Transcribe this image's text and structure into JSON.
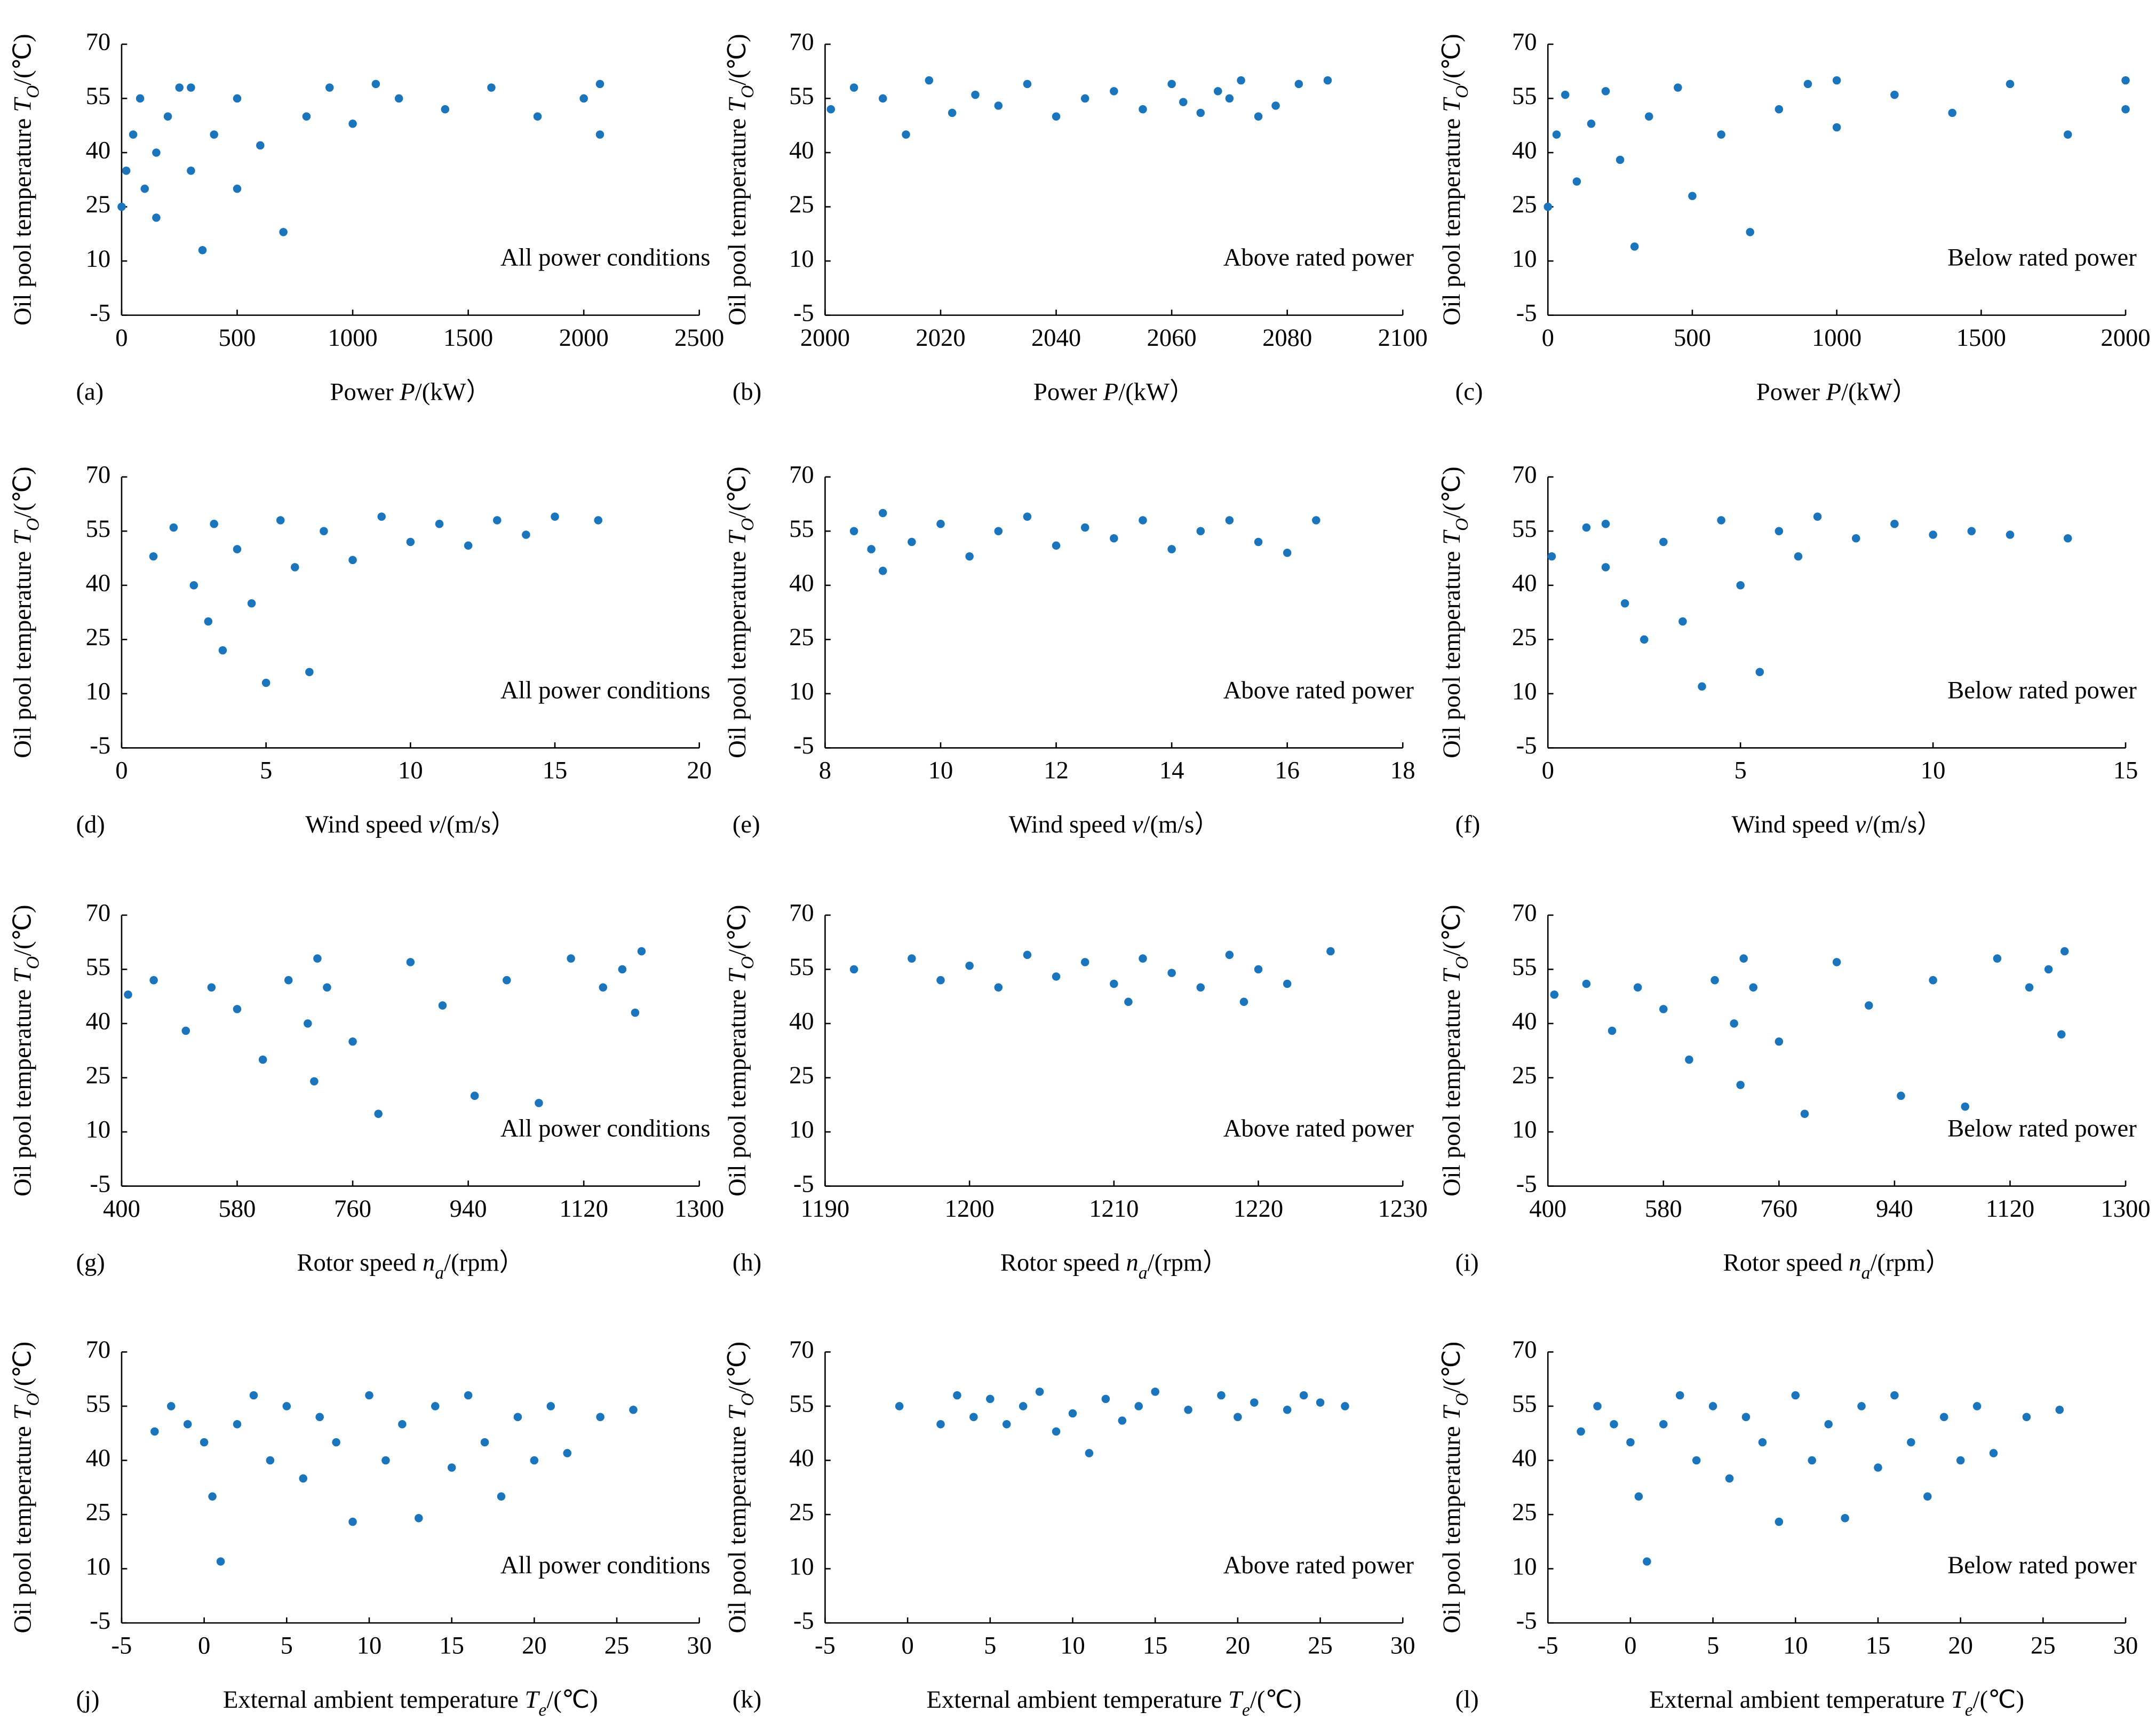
{
  "chart_data": [
    {
      "type": "scatter",
      "label": "(a)",
      "annotation": "All power conditions",
      "color": "#1b75bc",
      "xlim": [
        0,
        2500
      ],
      "xticks": [
        0,
        500,
        1000,
        1500,
        2000,
        2500
      ],
      "ylim": [
        -5,
        70
      ],
      "yticks": [
        -5,
        10,
        25,
        40,
        55,
        70
      ],
      "xlabel": {
        "text": "Power ",
        "symbol": "P",
        "unit": "/(kW）"
      },
      "ylabel": {
        "text": "Oil pool temperature ",
        "symbol": "T",
        "sub": "O",
        "unit": "/(℃)"
      },
      "x": [
        0,
        20,
        50,
        80,
        100,
        150,
        200,
        250,
        300,
        350,
        400,
        500,
        600,
        700,
        800,
        900,
        1000,
        1200,
        1400,
        1600,
        1800,
        2000,
        2070,
        2070,
        1100,
        300,
        150,
        500
      ],
      "y": [
        25,
        35,
        45,
        55,
        30,
        40,
        50,
        58,
        35,
        13,
        45,
        55,
        42,
        18,
        50,
        58,
        48,
        55,
        52,
        58,
        50,
        55,
        45,
        59,
        59,
        58,
        22,
        30
      ]
    },
    {
      "type": "scatter",
      "label": "(b)",
      "annotation": "Above rated power",
      "color": "#1b75bc",
      "xlim": [
        2000,
        2100
      ],
      "xticks": [
        2000,
        2020,
        2040,
        2060,
        2080,
        2100
      ],
      "ylim": [
        -5,
        70
      ],
      "yticks": [
        -5,
        10,
        25,
        40,
        55,
        70
      ],
      "xlabel": {
        "text": "Power  ",
        "symbol": "P",
        "unit": "/(kW）"
      },
      "ylabel": {
        "text": "Oil pool temperature ",
        "symbol": "T",
        "sub": "O",
        "unit": "/(℃)"
      },
      "x": [
        2001,
        2005,
        2010,
        2014,
        2018,
        2022,
        2026,
        2030,
        2035,
        2040,
        2045,
        2050,
        2055,
        2060,
        2062,
        2065,
        2068,
        2070,
        2072,
        2075,
        2078,
        2082,
        2087
      ],
      "y": [
        52,
        58,
        55,
        45,
        60,
        51,
        56,
        53,
        59,
        50,
        55,
        57,
        52,
        59,
        54,
        51,
        57,
        55,
        60,
        50,
        53,
        59,
        60
      ]
    },
    {
      "type": "scatter",
      "label": "(c)",
      "annotation": "Below rated power",
      "color": "#1b75bc",
      "xlim": [
        0,
        2000
      ],
      "xticks": [
        0,
        500,
        1000,
        1500,
        2000
      ],
      "ylim": [
        -5,
        70
      ],
      "yticks": [
        -5,
        10,
        25,
        40,
        55,
        70
      ],
      "xlabel": {
        "text": "Power  ",
        "symbol": "P",
        "unit": "/(kW）"
      },
      "ylabel": {
        "text": "Oil pool temperature ",
        "symbol": "T",
        "sub": "O",
        "unit": "/(℃)"
      },
      "x": [
        0,
        30,
        60,
        100,
        150,
        200,
        250,
        300,
        350,
        450,
        500,
        600,
        700,
        800,
        900,
        1000,
        1200,
        1400,
        1600,
        1800,
        2000,
        2000,
        1000
      ],
      "y": [
        25,
        45,
        56,
        32,
        48,
        57,
        38,
        14,
        50,
        58,
        28,
        45,
        18,
        52,
        59,
        47,
        56,
        51,
        59,
        45,
        52,
        60,
        60
      ]
    },
    {
      "type": "scatter",
      "label": "(d)",
      "annotation": "All power conditions",
      "color": "#1b75bc",
      "xlim": [
        0,
        20
      ],
      "xticks": [
        0,
        5,
        10,
        15,
        20
      ],
      "ylim": [
        -5,
        70
      ],
      "yticks": [
        -5,
        10,
        25,
        40,
        55,
        70
      ],
      "xlabel": {
        "text": "Wind speed ",
        "symbol": "v",
        "unit": "/(m/s）"
      },
      "ylabel": {
        "text": "Oil pool temperature ",
        "symbol": "T",
        "sub": "O",
        "unit": "/(℃)"
      },
      "x": [
        1.1,
        1.8,
        2.5,
        3,
        3.5,
        4,
        4.5,
        5,
        5.5,
        6,
        6.5,
        7,
        8,
        9,
        10,
        11,
        12,
        13,
        14,
        15,
        16.5,
        3.2
      ],
      "y": [
        48,
        56,
        40,
        30,
        22,
        50,
        35,
        13,
        58,
        45,
        16,
        55,
        47,
        59,
        52,
        57,
        51,
        58,
        54,
        59,
        58,
        57
      ]
    },
    {
      "type": "scatter",
      "label": "(e)",
      "annotation": "Above rated power",
      "color": "#1b75bc",
      "xlim": [
        8,
        18
      ],
      "xticks": [
        8,
        10,
        12,
        14,
        16,
        18
      ],
      "ylim": [
        -5,
        70
      ],
      "yticks": [
        -5,
        10,
        25,
        40,
        55,
        70
      ],
      "xlabel": {
        "text": "Wind speed ",
        "symbol": "v",
        "unit": "/(m/s）"
      },
      "ylabel": {
        "text": "Oil pool temperature  ",
        "symbol": "T",
        "sub": "O",
        "unit": "/(℃)"
      },
      "x": [
        8.5,
        8.8,
        9,
        9,
        9.5,
        10,
        10.5,
        11,
        11.5,
        12,
        12.5,
        13,
        13.5,
        14,
        14.5,
        15,
        15.5,
        16,
        16.5
      ],
      "y": [
        55,
        50,
        44,
        60,
        52,
        57,
        48,
        55,
        59,
        51,
        56,
        53,
        58,
        50,
        55,
        58,
        52,
        49,
        58
      ]
    },
    {
      "type": "scatter",
      "label": "(f)",
      "annotation": "Below rated power",
      "color": "#1b75bc",
      "xlim": [
        0,
        15
      ],
      "xticks": [
        0,
        5,
        10,
        15
      ],
      "ylim": [
        -5,
        70
      ],
      "yticks": [
        -5,
        10,
        25,
        40,
        55,
        70
      ],
      "xlabel": {
        "text": "Wind speed ",
        "symbol": "v",
        "unit": "/(m/s）"
      },
      "ylabel": {
        "text": "Oil pool temperature  ",
        "symbol": "T",
        "sub": "O",
        "unit": "/(℃)"
      },
      "x": [
        0.1,
        1,
        1.5,
        2,
        2.5,
        3,
        3.5,
        4,
        4.5,
        5,
        5.5,
        6,
        6.5,
        7,
        8,
        9,
        10,
        11,
        12,
        13.5,
        1.5
      ],
      "y": [
        48,
        56,
        45,
        35,
        25,
        52,
        30,
        12,
        58,
        40,
        16,
        55,
        48,
        59,
        53,
        57,
        54,
        55,
        54,
        53,
        57
      ]
    },
    {
      "type": "scatter",
      "label": "(g)",
      "annotation": "All power conditions",
      "color": "#1b75bc",
      "xlim": [
        400,
        1300
      ],
      "xticks": [
        400,
        580,
        760,
        940,
        1120,
        1300
      ],
      "ylim": [
        -5,
        70
      ],
      "yticks": [
        -5,
        10,
        25,
        40,
        55,
        70
      ],
      "xlabel": {
        "text": "Rotor speed  ",
        "symbol": "n",
        "sub": "a",
        "unit": "/(rpm）"
      },
      "ylabel": {
        "text": "Oil pool temperature  ",
        "symbol": "T",
        "sub": "O",
        "unit": "/(℃)"
      },
      "x": [
        410,
        450,
        500,
        540,
        580,
        620,
        660,
        690,
        700,
        705,
        720,
        760,
        800,
        850,
        900,
        950,
        1000,
        1050,
        1100,
        1150,
        1200,
        1210,
        1180
      ],
      "y": [
        48,
        52,
        38,
        50,
        44,
        30,
        52,
        40,
        24,
        58,
        50,
        35,
        15,
        57,
        45,
        20,
        52,
        18,
        58,
        50,
        43,
        60,
        55
      ]
    },
    {
      "type": "scatter",
      "label": "(h)",
      "annotation": "Above rated power",
      "color": "#1b75bc",
      "xlim": [
        1190,
        1230
      ],
      "xticks": [
        1190,
        1200,
        1210,
        1220,
        1230
      ],
      "ylim": [
        -5,
        70
      ],
      "yticks": [
        -5,
        10,
        25,
        40,
        55,
        70
      ],
      "xlabel": {
        "text": "Rotor speed  ",
        "symbol": "n",
        "sub": "a",
        "unit": "/(rpm）"
      },
      "ylabel": {
        "text": "Oil pool temperature  ",
        "symbol": "T",
        "sub": "O",
        "unit": "/(℃)"
      },
      "x": [
        1192,
        1196,
        1198,
        1200,
        1202,
        1204,
        1206,
        1208,
        1210,
        1211,
        1212,
        1214,
        1216,
        1218,
        1220,
        1222,
        1225,
        1219
      ],
      "y": [
        55,
        58,
        52,
        56,
        50,
        59,
        53,
        57,
        51,
        46,
        58,
        54,
        50,
        59,
        55,
        51,
        60,
        46
      ]
    },
    {
      "type": "scatter",
      "label": "(i)",
      "annotation": "Below rated power",
      "color": "#1b75bc",
      "xlim": [
        400,
        1300
      ],
      "xticks": [
        400,
        580,
        760,
        940,
        1120,
        1300
      ],
      "ylim": [
        -5,
        70
      ],
      "yticks": [
        -5,
        10,
        25,
        40,
        55,
        70
      ],
      "xlabel": {
        "text": "Rotor speed  ",
        "symbol": "n",
        "sub": "a",
        "unit": "/(rpm）"
      },
      "ylabel": {
        "text": "Oil pool temperature  ",
        "symbol": "T",
        "sub": "O",
        "unit": "/(℃)"
      },
      "x": [
        410,
        460,
        500,
        540,
        580,
        620,
        660,
        690,
        700,
        705,
        720,
        760,
        800,
        850,
        900,
        950,
        1000,
        1050,
        1100,
        1150,
        1200,
        1205,
        1180
      ],
      "y": [
        48,
        51,
        38,
        50,
        44,
        30,
        52,
        40,
        23,
        58,
        50,
        35,
        15,
        57,
        45,
        20,
        52,
        17,
        58,
        50,
        37,
        60,
        55
      ]
    },
    {
      "type": "scatter",
      "label": "(j)",
      "annotation": "All power conditions",
      "color": "#1b75bc",
      "xlim": [
        -5,
        30
      ],
      "xticks": [
        -5,
        0,
        5,
        10,
        15,
        20,
        25,
        30
      ],
      "ylim": [
        -5,
        70
      ],
      "yticks": [
        -5,
        10,
        25,
        40,
        55,
        70
      ],
      "xlabel": {
        "text": "External ambient temperature  ",
        "symbol": "T",
        "sub": "e",
        "unit": "/(℃)"
      },
      "ylabel": {
        "text": "Oil pool temperature  ",
        "symbol": "T",
        "sub": "O",
        "unit": "/(℃)"
      },
      "x": [
        -3,
        -2,
        -1,
        0,
        0.5,
        1,
        2,
        3,
        4,
        5,
        6,
        7,
        8,
        9,
        10,
        11,
        12,
        13,
        14,
        15,
        16,
        17,
        18,
        19,
        20,
        21,
        22,
        24,
        26
      ],
      "y": [
        48,
        55,
        50,
        45,
        30,
        12,
        50,
        58,
        40,
        55,
        35,
        52,
        45,
        23,
        58,
        40,
        50,
        24,
        55,
        38,
        58,
        45,
        30,
        52,
        40,
        55,
        42,
        52,
        54
      ]
    },
    {
      "type": "scatter",
      "label": "(k)",
      "annotation": "Above rated power",
      "color": "#1b75bc",
      "xlim": [
        -5,
        30
      ],
      "xticks": [
        -5,
        0,
        5,
        10,
        15,
        20,
        25,
        30
      ],
      "ylim": [
        -5,
        70
      ],
      "yticks": [
        -5,
        10,
        25,
        40,
        55,
        70
      ],
      "xlabel": {
        "text": "External ambient temperature  ",
        "symbol": "T",
        "sub": "e",
        "unit": "/(℃)"
      },
      "ylabel": {
        "text": "Oil pool temperature  ",
        "symbol": "T",
        "sub": "O",
        "unit": "/(℃)"
      },
      "x": [
        -0.5,
        2,
        3,
        4,
        5,
        6,
        7,
        8,
        9,
        10,
        11,
        12,
        13,
        14,
        15,
        17,
        19,
        20,
        21,
        23,
        24,
        25,
        26.5
      ],
      "y": [
        55,
        50,
        58,
        52,
        57,
        50,
        55,
        59,
        48,
        53,
        42,
        57,
        51,
        55,
        59,
        54,
        58,
        52,
        56,
        54,
        58,
        56,
        55
      ]
    },
    {
      "type": "scatter",
      "label": "(l)",
      "annotation": "Below rated power",
      "color": "#1b75bc",
      "xlim": [
        -5,
        30
      ],
      "xticks": [
        -5,
        0,
        5,
        10,
        15,
        20,
        25,
        30
      ],
      "ylim": [
        -5,
        70
      ],
      "yticks": [
        -5,
        10,
        25,
        40,
        55,
        70
      ],
      "xlabel": {
        "text": "External ambient temperature  ",
        "symbol": "T",
        "sub": "e",
        "unit": "/(℃)"
      },
      "ylabel": {
        "text": "Oil pool temperature  ",
        "symbol": "T",
        "sub": "O",
        "unit": "/(℃)"
      },
      "x": [
        -3,
        -2,
        -1,
        0,
        0.5,
        1,
        2,
        3,
        4,
        5,
        6,
        7,
        8,
        9,
        10,
        11,
        12,
        13,
        14,
        15,
        16,
        17,
        18,
        19,
        20,
        21,
        22,
        24,
        26
      ],
      "y": [
        48,
        55,
        50,
        45,
        30,
        12,
        50,
        58,
        40,
        55,
        35,
        52,
        45,
        23,
        58,
        40,
        50,
        24,
        55,
        38,
        58,
        45,
        30,
        52,
        40,
        55,
        42,
        52,
        54
      ]
    }
  ]
}
